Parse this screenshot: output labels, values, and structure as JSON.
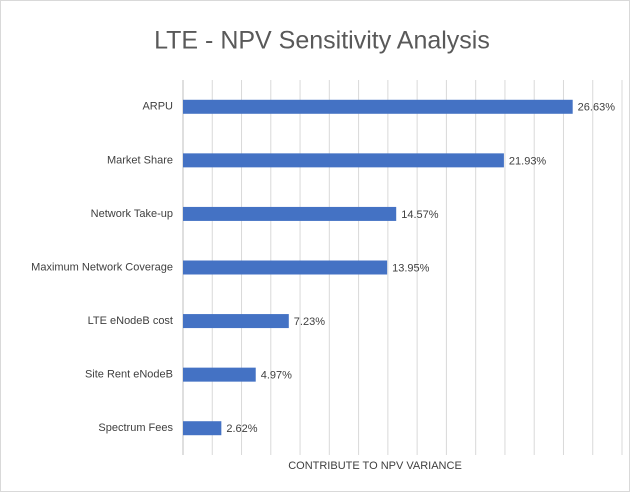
{
  "chart_data": {
    "type": "barh",
    "title": "LTE - NPV Sensitivity Analysis",
    "x_label": "CONTRIBUTE TO NPV VARIANCE",
    "categories": [
      "ARPU",
      "Market Share",
      "Network Take-up",
      "Maximum Network Coverage",
      "LTE eNodeB cost",
      "Site Rent eNodeB",
      "Spectrum Fees"
    ],
    "values": [
      26.63,
      21.93,
      14.57,
      13.95,
      7.23,
      4.97,
      2.62
    ],
    "value_labels": [
      "26.63%",
      "21.93%",
      "14.57%",
      "13.95%",
      "7.23%",
      "4.97%",
      "2.62%"
    ],
    "color": "#4472c4",
    "xlim": [
      0,
      30
    ],
    "xticks": [
      0,
      2,
      4,
      6,
      8,
      10,
      12,
      14,
      16,
      18,
      20,
      22,
      24,
      26,
      28,
      30
    ],
    "tick_labels": false,
    "grid": true
  }
}
